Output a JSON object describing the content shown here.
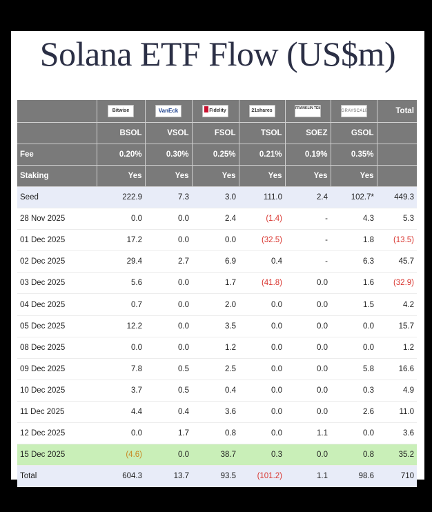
{
  "title": "Solana ETF Flow (US$m)",
  "columns": [
    {
      "logo": "Bitwise",
      "logo_icon": "bitwise-logo",
      "ticker": "BSOL",
      "fee": "0.20%",
      "staking": "Yes"
    },
    {
      "logo": "VanEck",
      "logo_icon": "vaneck-logo",
      "ticker": "VSOL",
      "fee": "0.30%",
      "staking": "Yes"
    },
    {
      "logo": "Fidelity",
      "logo_icon": "fidelity-logo",
      "ticker": "FSOL",
      "fee": "0.25%",
      "staking": "Yes"
    },
    {
      "logo": "21shares",
      "logo_icon": "21shares-logo",
      "ticker": "TSOL",
      "fee": "0.21%",
      "staking": "Yes"
    },
    {
      "logo": "FRANKLIN TEMPLETON",
      "logo_icon": "franklin-templeton-logo",
      "ticker": "SOEZ",
      "fee": "0.19%",
      "staking": "Yes"
    },
    {
      "logo": "GRAYSCALE",
      "logo_icon": "grayscale-logo",
      "ticker": "GSOL",
      "fee": "0.35%",
      "staking": "Yes"
    }
  ],
  "total_label": "Total",
  "fee_label": "Fee",
  "staking_label": "Staking",
  "rows": [
    {
      "label": "Seed",
      "values": [
        "222.9",
        "7.3",
        "3.0",
        "111.0",
        "2.4",
        "102.7*"
      ],
      "total": "449.3"
    },
    {
      "label": "28 Nov 2025",
      "values": [
        "0.0",
        "0.0",
        "2.4",
        "(1.4)",
        "-",
        "4.3"
      ],
      "total": "5.3"
    },
    {
      "label": "01 Dec 2025",
      "values": [
        "17.2",
        "0.0",
        "0.0",
        "(32.5)",
        "-",
        "1.8"
      ],
      "total": "(13.5)"
    },
    {
      "label": "02 Dec 2025",
      "values": [
        "29.4",
        "2.7",
        "6.9",
        "0.4",
        "-",
        "6.3"
      ],
      "total": "45.7"
    },
    {
      "label": "03 Dec 2025",
      "values": [
        "5.6",
        "0.0",
        "1.7",
        "(41.8)",
        "0.0",
        "1.6"
      ],
      "total": "(32.9)"
    },
    {
      "label": "04 Dec 2025",
      "values": [
        "0.7",
        "0.0",
        "2.0",
        "0.0",
        "0.0",
        "1.5"
      ],
      "total": "4.2"
    },
    {
      "label": "05 Dec 2025",
      "values": [
        "12.2",
        "0.0",
        "3.5",
        "0.0",
        "0.0",
        "0.0"
      ],
      "total": "15.7"
    },
    {
      "label": "08 Dec 2025",
      "values": [
        "0.0",
        "0.0",
        "1.2",
        "0.0",
        "0.0",
        "0.0"
      ],
      "total": "1.2"
    },
    {
      "label": "09 Dec 2025",
      "values": [
        "7.8",
        "0.5",
        "2.5",
        "0.0",
        "0.0",
        "5.8"
      ],
      "total": "16.6"
    },
    {
      "label": "10 Dec 2025",
      "values": [
        "3.7",
        "0.5",
        "0.4",
        "0.0",
        "0.0",
        "0.3"
      ],
      "total": "4.9"
    },
    {
      "label": "11 Dec 2025",
      "values": [
        "4.4",
        "0.4",
        "3.6",
        "0.0",
        "0.0",
        "2.6"
      ],
      "total": "11.0"
    },
    {
      "label": "12 Dec 2025",
      "values": [
        "0.0",
        "1.7",
        "0.8",
        "0.0",
        "1.1",
        "0.0"
      ],
      "total": "3.6"
    },
    {
      "label": "15 Dec 2025",
      "values": [
        "(4.6)",
        "0.0",
        "38.7",
        "0.3",
        "0.0",
        "0.8"
      ],
      "total": "35.2",
      "highlight": true
    },
    {
      "label": "Total",
      "values": [
        "604.3",
        "13.7",
        "93.5",
        "(101.2)",
        "1.1",
        "98.6"
      ],
      "total": "710"
    }
  ],
  "colors": {
    "header_bg": "#7a7a7a",
    "seed_total_bg": "#e8ecf8",
    "highlight_bg": "#c9efb8",
    "negative": "#d9352f",
    "highlight_negative": "#c8861f",
    "title": "#2b2f45"
  }
}
